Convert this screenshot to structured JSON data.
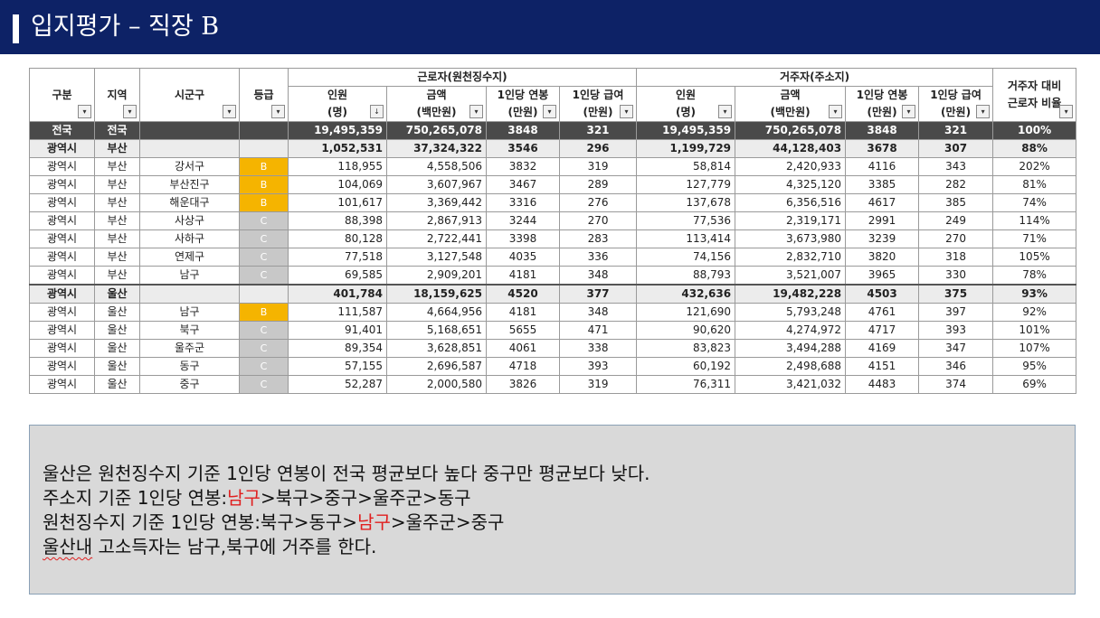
{
  "slide": {
    "title": "입지평가 – 직장 B"
  },
  "table": {
    "group_headers": {
      "workers": "근로자(원천징수지)",
      "residents": "거주자(주소지)"
    },
    "headers": {
      "region_type": "구분",
      "region": "지역",
      "district": "시군구",
      "grade": "등급",
      "w_people_1": "인원",
      "w_people_2": "(명)",
      "w_amount_1": "금액",
      "w_amount_2": "(백만원)",
      "w_annual_1": "1인당 연봉",
      "w_annual_2": "(만원)",
      "w_monthly_1": "1인당 급여",
      "w_monthly_2": "(만원)",
      "r_people_1": "인원",
      "r_people_2": "(명)",
      "r_amount_1": "금액",
      "r_amount_2": "(백만원)",
      "r_annual_1": "1인당 연봉",
      "r_annual_2": "(만원)",
      "r_monthly_1": "1인당 급여",
      "r_monthly_2": "(만원)",
      "ratio_1": "거주자 대비",
      "ratio_2": "근로자 비율"
    },
    "filter_icon": "▾",
    "sort_icon": "↓",
    "rows": [
      {
        "kind": "national",
        "type": "전국",
        "region": "전국",
        "district": "",
        "grade": "",
        "grade_level": "",
        "w_people": "19,495,359",
        "w_amount": "750,265,078",
        "w_annual": "3848",
        "w_monthly": "321",
        "r_people": "19,495,359",
        "r_amount": "750,265,078",
        "r_annual": "3848",
        "r_monthly": "321",
        "ratio": "100%"
      },
      {
        "kind": "subtotal",
        "type": "광역시",
        "region": "부산",
        "district": "",
        "grade": "",
        "grade_level": "",
        "w_people": "1,052,531",
        "w_amount": "37,324,322",
        "w_annual": "3546",
        "w_monthly": "296",
        "r_people": "1,199,729",
        "r_amount": "44,128,403",
        "r_annual": "3678",
        "r_monthly": "307",
        "ratio": "88%"
      },
      {
        "kind": "row",
        "type": "광역시",
        "region": "부산",
        "district": "강서구",
        "grade": "B",
        "grade_level": "B",
        "w_people": "118,955",
        "w_amount": "4,558,506",
        "w_annual": "3832",
        "w_monthly": "319",
        "r_people": "58,814",
        "r_amount": "2,420,933",
        "r_annual": "4116",
        "r_monthly": "343",
        "ratio": "202%"
      },
      {
        "kind": "row",
        "type": "광역시",
        "region": "부산",
        "district": "부산진구",
        "grade": "B",
        "grade_level": "B",
        "w_people": "104,069",
        "w_amount": "3,607,967",
        "w_annual": "3467",
        "w_monthly": "289",
        "r_people": "127,779",
        "r_amount": "4,325,120",
        "r_annual": "3385",
        "r_monthly": "282",
        "ratio": "81%"
      },
      {
        "kind": "row",
        "type": "광역시",
        "region": "부산",
        "district": "해운대구",
        "grade": "B",
        "grade_level": "B",
        "w_people": "101,617",
        "w_amount": "3,369,442",
        "w_annual": "3316",
        "w_monthly": "276",
        "r_people": "137,678",
        "r_amount": "6,356,516",
        "r_annual": "4617",
        "r_monthly": "385",
        "ratio": "74%"
      },
      {
        "kind": "row",
        "type": "광역시",
        "region": "부산",
        "district": "사상구",
        "grade": "C",
        "grade_level": "C",
        "w_people": "88,398",
        "w_amount": "2,867,913",
        "w_annual": "3244",
        "w_monthly": "270",
        "r_people": "77,536",
        "r_amount": "2,319,171",
        "r_annual": "2991",
        "r_monthly": "249",
        "ratio": "114%"
      },
      {
        "kind": "row",
        "type": "광역시",
        "region": "부산",
        "district": "사하구",
        "grade": "C",
        "grade_level": "C",
        "w_people": "80,128",
        "w_amount": "2,722,441",
        "w_annual": "3398",
        "w_monthly": "283",
        "r_people": "113,414",
        "r_amount": "3,673,980",
        "r_annual": "3239",
        "r_monthly": "270",
        "ratio": "71%"
      },
      {
        "kind": "row",
        "type": "광역시",
        "region": "부산",
        "district": "연제구",
        "grade": "C",
        "grade_level": "C",
        "w_people": "77,518",
        "w_amount": "3,127,548",
        "w_annual": "4035",
        "w_monthly": "336",
        "r_people": "74,156",
        "r_amount": "2,832,710",
        "r_annual": "3820",
        "r_monthly": "318",
        "ratio": "105%"
      },
      {
        "kind": "row",
        "type": "광역시",
        "region": "부산",
        "district": "남구",
        "grade": "C",
        "grade_level": "C",
        "w_people": "69,585",
        "w_amount": "2,909,201",
        "w_annual": "4181",
        "w_monthly": "348",
        "r_people": "88,793",
        "r_amount": "3,521,007",
        "r_annual": "3965",
        "r_monthly": "330",
        "ratio": "78%"
      },
      {
        "kind": "subtotal",
        "type": "광역시",
        "region": "울산",
        "district": "",
        "grade": "",
        "grade_level": "",
        "w_people": "401,784",
        "w_amount": "18,159,625",
        "w_annual": "4520",
        "w_monthly": "377",
        "r_people": "432,636",
        "r_amount": "19,482,228",
        "r_annual": "4503",
        "r_monthly": "375",
        "ratio": "93%"
      },
      {
        "kind": "row",
        "type": "광역시",
        "region": "울산",
        "district": "남구",
        "grade": "B",
        "grade_level": "B",
        "w_people": "111,587",
        "w_amount": "4,664,956",
        "w_annual": "4181",
        "w_monthly": "348",
        "r_people": "121,690",
        "r_amount": "5,793,248",
        "r_annual": "4761",
        "r_monthly": "397",
        "ratio": "92%"
      },
      {
        "kind": "row",
        "type": "광역시",
        "region": "울산",
        "district": "북구",
        "grade": "C",
        "grade_level": "C",
        "w_people": "91,401",
        "w_amount": "5,168,651",
        "w_annual": "5655",
        "w_monthly": "471",
        "r_people": "90,620",
        "r_amount": "4,274,972",
        "r_annual": "4717",
        "r_monthly": "393",
        "ratio": "101%"
      },
      {
        "kind": "row",
        "type": "광역시",
        "region": "울산",
        "district": "울주군",
        "grade": "C",
        "grade_level": "C",
        "w_people": "89,354",
        "w_amount": "3,628,851",
        "w_annual": "4061",
        "w_monthly": "338",
        "r_people": "83,823",
        "r_amount": "3,494,288",
        "r_annual": "4169",
        "r_monthly": "347",
        "ratio": "107%"
      },
      {
        "kind": "row",
        "type": "광역시",
        "region": "울산",
        "district": "동구",
        "grade": "C",
        "grade_level": "C",
        "w_people": "57,155",
        "w_amount": "2,696,587",
        "w_annual": "4718",
        "w_monthly": "393",
        "r_people": "60,192",
        "r_amount": "2,498,688",
        "r_annual": "4151",
        "r_monthly": "346",
        "ratio": "95%"
      },
      {
        "kind": "row",
        "type": "광역시",
        "region": "울산",
        "district": "중구",
        "grade": "C",
        "grade_level": "C",
        "w_people": "52,287",
        "w_amount": "2,000,580",
        "w_annual": "3826",
        "w_monthly": "319",
        "r_people": "76,311",
        "r_amount": "3,421,032",
        "r_annual": "4483",
        "r_monthly": "374",
        "ratio": "69%"
      }
    ]
  },
  "grade_colors": {
    "B": "#f5b400",
    "C": "#c8c8c8"
  },
  "note": {
    "lines": [
      [
        {
          "text": "울산은 원천징수지 기준 1인당 연봉이 전국 평균보다 높다 중구만 평균보다 낮다.",
          "style": ""
        }
      ],
      [
        {
          "text": "주소지 기준 1인당 연봉:",
          "style": ""
        },
        {
          "text": "남구",
          "style": "red"
        },
        {
          "text": ">북구>중구>울주군>동구",
          "style": ""
        }
      ],
      [
        {
          "text": "원천징수지 기준 1인당 연봉:북구>동구>",
          "style": ""
        },
        {
          "text": "남구",
          "style": "red"
        },
        {
          "text": ">울주군>중구",
          "style": ""
        }
      ],
      [
        {
          "text": "울산내",
          "style": "squig"
        },
        {
          "text": " 고소득자는 남구,북구에 거주를 한다.",
          "style": ""
        }
      ]
    ]
  }
}
